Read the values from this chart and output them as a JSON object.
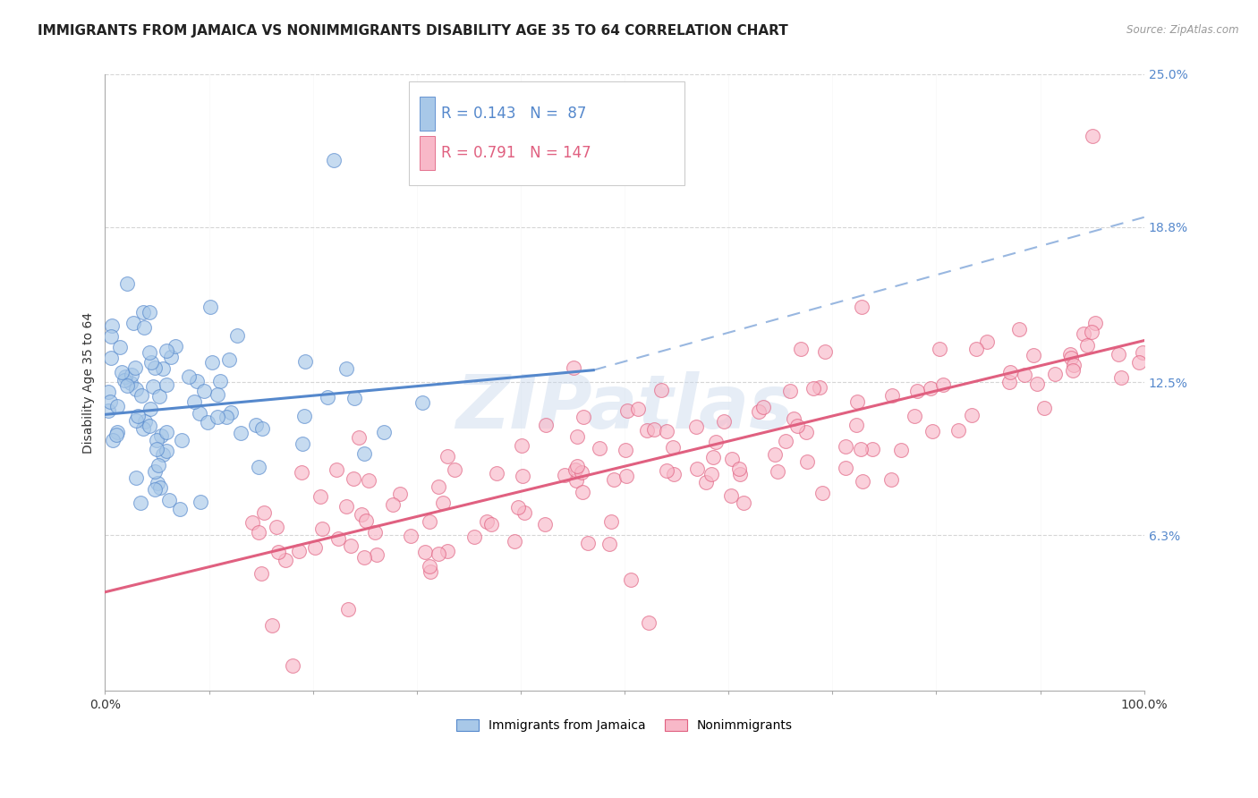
{
  "title": "IMMIGRANTS FROM JAMAICA VS NONIMMIGRANTS DISABILITY AGE 35 TO 64 CORRELATION CHART",
  "source": "Source: ZipAtlas.com",
  "ylabel": "Disability Age 35 to 64",
  "xlim": [
    0.0,
    100.0
  ],
  "ylim": [
    0.0,
    25.0
  ],
  "yticks": [
    6.3,
    12.5,
    18.8,
    25.0
  ],
  "ytick_labels": [
    "6.3%",
    "12.5%",
    "18.8%",
    "25.0%"
  ],
  "legend_r1": "R = 0.143",
  "legend_n1": "N =  87",
  "legend_r2": "R = 0.791",
  "legend_n2": "N = 147",
  "color_blue": "#a8c8e8",
  "color_blue_line": "#5588cc",
  "color_pink": "#f8b8c8",
  "color_pink_line": "#e06080",
  "watermark": "ZIPatlas",
  "blue_line_x0": 0,
  "blue_line_x1": 47,
  "blue_line_y0": 11.2,
  "blue_line_y1": 13.0,
  "blue_dash_x0": 47,
  "blue_dash_x1": 100,
  "blue_dash_y0": 13.0,
  "blue_dash_y1": 19.2,
  "pink_line_x0": 0,
  "pink_line_x1": 100,
  "pink_line_y0": 4.0,
  "pink_line_y1": 14.2,
  "grid_color": "#cccccc",
  "background_color": "#ffffff",
  "title_fontsize": 11,
  "label_fontsize": 10,
  "tick_fontsize": 10
}
